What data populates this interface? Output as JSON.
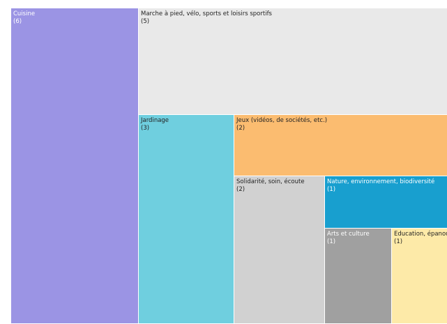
{
  "chart_data": {
    "type": "treemap",
    "items": [
      {
        "label": "Cuisine",
        "count": "(6)",
        "value": 6,
        "color": "#9b94e4",
        "text_color": "#ffffff"
      },
      {
        "label": "Marche à pied, vélo, sports et loisirs sportifs",
        "count": "(5)",
        "value": 5,
        "color": "#e9e9e9",
        "text_color": "#222222"
      },
      {
        "label": "Jardinage",
        "count": "(3)",
        "value": 3,
        "color": "#6fcfdf",
        "text_color": "#222222"
      },
      {
        "label": "Jeux (vidéos, de sociétés, etc.)",
        "count": "(2)",
        "value": 2,
        "color": "#fbbc70",
        "text_color": "#222222"
      },
      {
        "label": "Solidarité, soin, écoute",
        "count": "(2)",
        "value": 2,
        "color": "#d1d1d1",
        "text_color": "#222222"
      },
      {
        "label": "Nature, environnement, biodiversité",
        "count": "(1)",
        "value": 1,
        "color": "#189fcf",
        "text_color": "#ffffff"
      },
      {
        "label": "Arts et culture",
        "count": "(1)",
        "value": 1,
        "color": "#a0a0a0",
        "text_color": "#ffffff"
      },
      {
        "label": "Education, épanouissement",
        "count": "(1)",
        "value": 1,
        "color": "#fdeaa8",
        "text_color": "#222222"
      }
    ]
  }
}
